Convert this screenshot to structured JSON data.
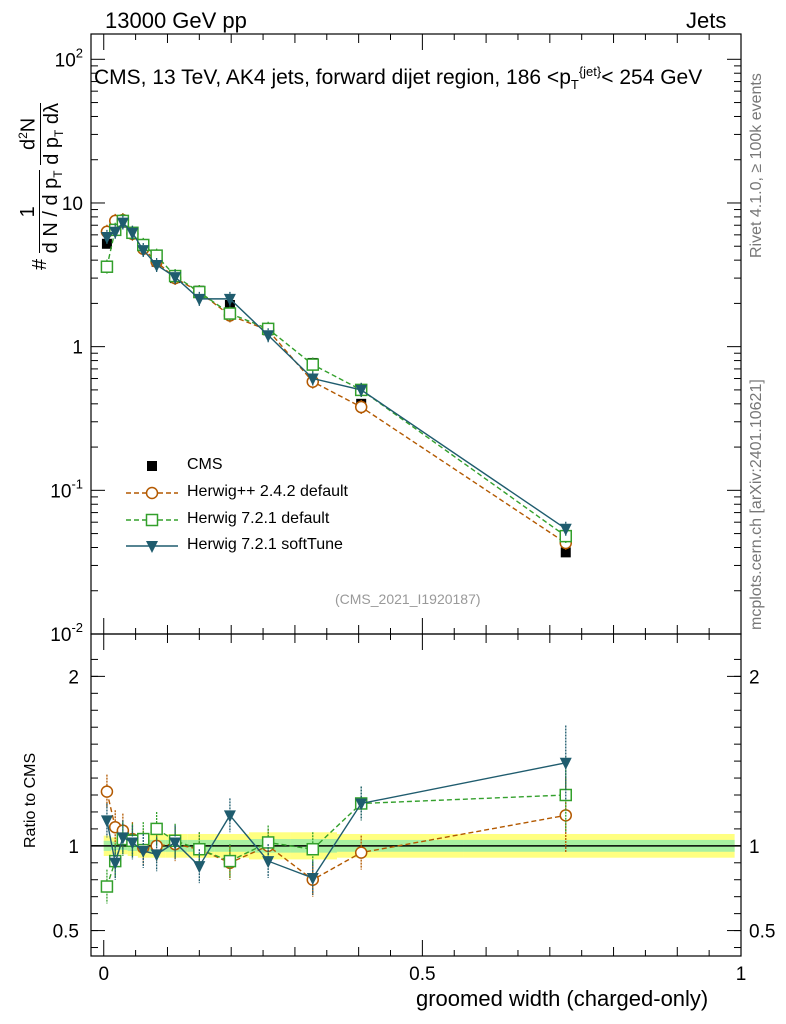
{
  "header": {
    "energy_label": "13000 GeV pp",
    "category_label": "Jets",
    "plot_title": "CMS, 13 TeV, AK4 jets, forward dijet region, 186 <p_T^{jet}< 254 GeV",
    "side_rivet": "Rivet 4.1.0, ≥ 100k events",
    "side_mcplots": "mcplots.cern.ch [arXiv:2401.10621]",
    "analysis_tag": "(CMS_2021_I1920187)"
  },
  "chart_data": [
    {
      "type": "line",
      "panel": "main",
      "log_y": true,
      "ylabel": "1/(d N / d p_T) d²N/(d p_T dλ)",
      "ylim": [
        0.01,
        150
      ],
      "xlim": [
        -0.02,
        1.0
      ],
      "ytick_labels": [
        "10^{-2}",
        "10^{-1}",
        "1",
        "10",
        "10^{2}"
      ],
      "x": [
        0.005,
        0.018,
        0.03,
        0.045,
        0.062,
        0.083,
        0.112,
        0.15,
        0.198,
        0.258,
        0.328,
        0.404,
        0.725
      ],
      "series": [
        {
          "name": "CMS",
          "marker": "square-filled",
          "color": "#000000",
          "values": [
            5.2,
            7.0,
            7.3,
            6.1,
            4.9,
            3.9,
            3.0,
            2.45,
            1.95,
            1.3,
            0.77,
            0.4,
            0.037
          ]
        },
        {
          "name": "Herwig++ 2.4.2 default",
          "marker": "circle-open",
          "color": "#b35900",
          "values": [
            6.3,
            7.5,
            7.6,
            6.1,
            4.8,
            3.9,
            3.0,
            2.4,
            1.65,
            1.3,
            0.57,
            0.38,
            0.043
          ]
        },
        {
          "name": "Herwig 7.2.1 default",
          "marker": "square-open",
          "color": "#33a02c",
          "values": [
            3.6,
            6.5,
            7.5,
            6.2,
            5.1,
            4.3,
            3.1,
            2.4,
            1.7,
            1.33,
            0.75,
            0.5,
            0.048
          ]
        },
        {
          "name": "Herwig 7.2.1 softTune",
          "marker": "triangle-down",
          "color": "#1f5c6e",
          "values": [
            5.8,
            6.3,
            7.3,
            6.2,
            4.7,
            3.7,
            3.05,
            2.15,
            2.15,
            1.2,
            0.6,
            0.5,
            0.054
          ]
        }
      ]
    },
    {
      "type": "line",
      "panel": "ratio",
      "ylabel": "Ratio to CMS",
      "ylim": [
        0.35,
        2.25
      ],
      "ytick_labels": [
        "0.5",
        "1",
        "2"
      ],
      "xlabel": "groomed width (charged-only)",
      "xtick_labels": [
        "0",
        "0.5",
        "1"
      ],
      "x": [
        0.005,
        0.018,
        0.03,
        0.045,
        0.062,
        0.083,
        0.112,
        0.15,
        0.198,
        0.258,
        0.328,
        0.404,
        0.725
      ],
      "series": [
        {
          "name": "Herwig++ 2.4.2 default",
          "color": "#b35900",
          "values": [
            1.32,
            1.11,
            1.09,
            1.04,
            0.99,
            1.0,
            1.01,
            0.98,
            0.9,
            1.0,
            0.8,
            0.96,
            1.18
          ]
        },
        {
          "name": "Herwig 7.2.1 default",
          "color": "#33a02c",
          "values": [
            0.76,
            0.91,
            1.04,
            1.03,
            1.04,
            1.1,
            1.03,
            0.98,
            0.91,
            1.02,
            0.98,
            1.25,
            1.3
          ]
        },
        {
          "name": "Herwig 7.2.1 softTune",
          "color": "#1f5c6e",
          "values": [
            1.15,
            0.9,
            1.05,
            1.02,
            0.97,
            0.95,
            1.02,
            0.88,
            1.18,
            0.91,
            0.81,
            1.25,
            1.49
          ]
        }
      ]
    }
  ],
  "legend": [
    {
      "label": "CMS"
    },
    {
      "label": "Herwig++ 2.4.2 default"
    },
    {
      "label": "Herwig 7.2.1 default"
    },
    {
      "label": "Herwig 7.2.1 softTune"
    }
  ]
}
